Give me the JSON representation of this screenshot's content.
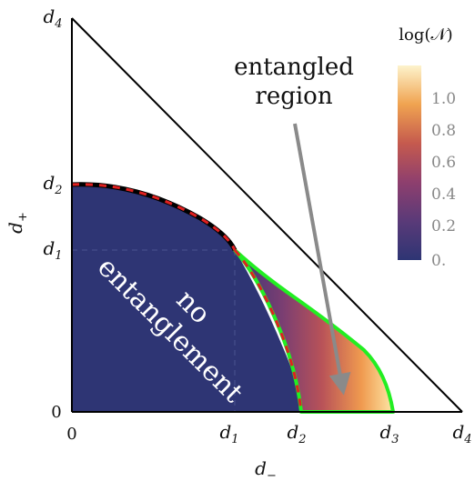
{
  "x_ticks": [
    {
      "base": "0",
      "sub": ""
    },
    {
      "base": "d",
      "sub": "1"
    },
    {
      "base": "d",
      "sub": "2"
    },
    {
      "base": "d",
      "sub": "3"
    },
    {
      "base": "d",
      "sub": "4"
    }
  ],
  "y_ticks": [
    {
      "base": "0",
      "sub": ""
    },
    {
      "base": "d",
      "sub": "1"
    },
    {
      "base": "d",
      "sub": "2"
    },
    {
      "base": "d",
      "sub": "4"
    }
  ],
  "axis": {
    "x_label_base": "d",
    "x_label_sub": "−",
    "y_label_base": "d",
    "y_label_sub": "+"
  },
  "annotation": {
    "line1": "entangled",
    "line2": "region"
  },
  "inner_label": {
    "line1": "no",
    "line2": "entanglement"
  },
  "colorbar": {
    "title": "log(𝒩)",
    "ticks": [
      "1.0",
      "0.8",
      "0.6",
      "0.4",
      "0.2",
      "0."
    ]
  },
  "colors": {
    "no_entanglement_fill": "#2e3574",
    "green_boundary": "#22ee22",
    "red_dashed": "#e02020",
    "arrow": "#8a8a8a"
  }
}
